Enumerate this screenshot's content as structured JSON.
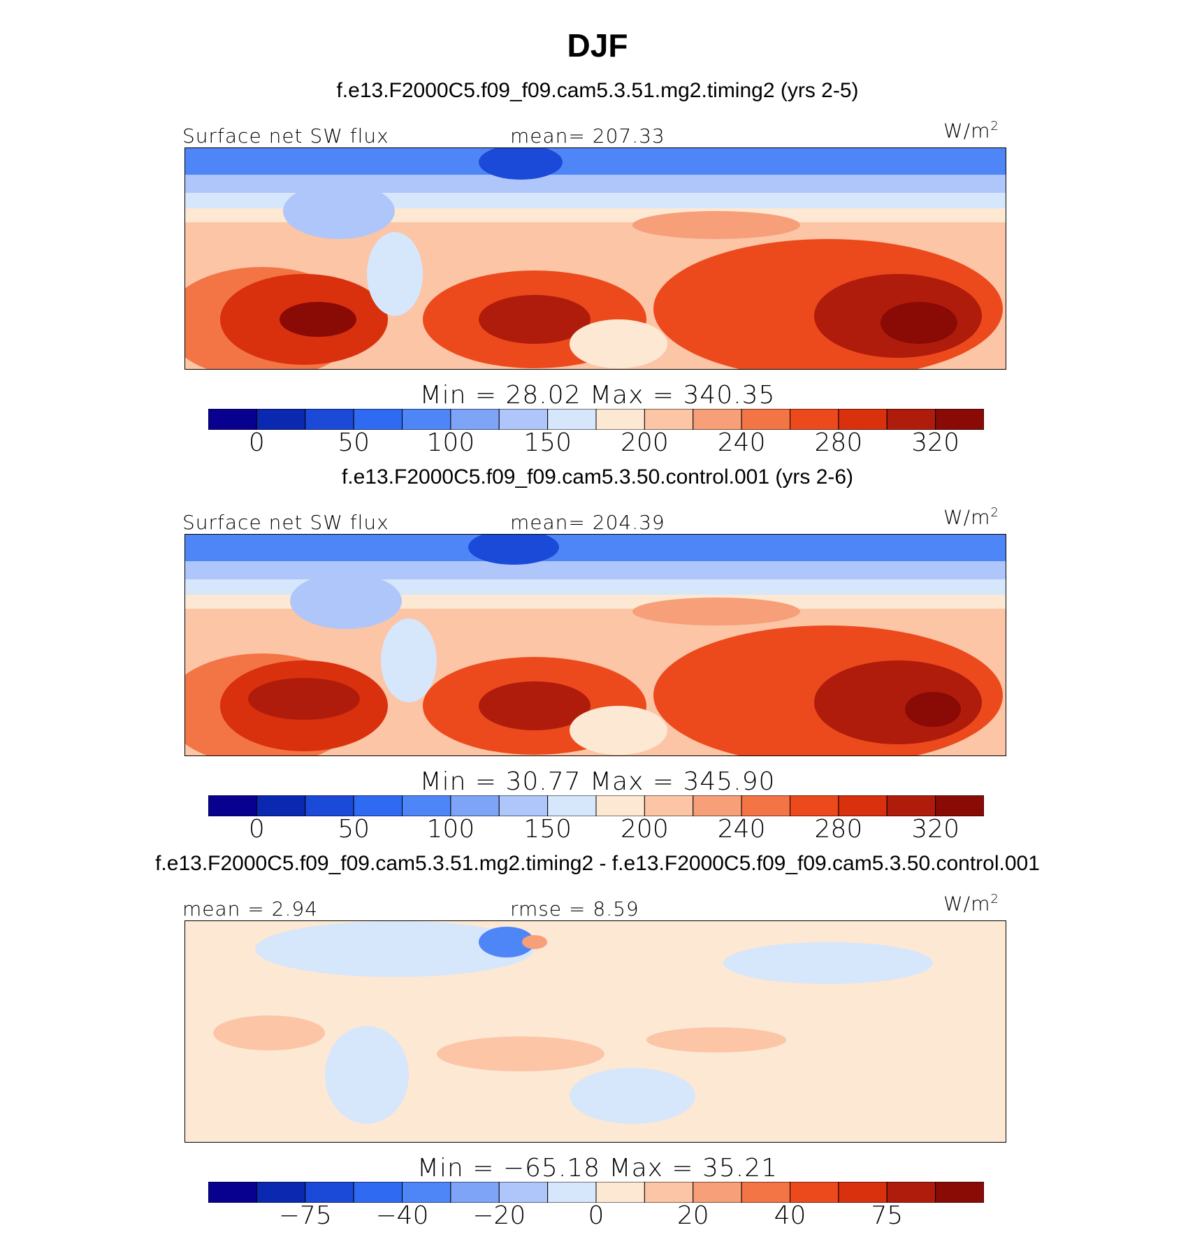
{
  "title": "DJF",
  "palette": [
    "#08008f",
    "#0a28b0",
    "#1b49d8",
    "#2f6af2",
    "#4f86f7",
    "#7ea4f8",
    "#aec6fa",
    "#d6e6fb",
    "#fde8d4",
    "#fbc5a6",
    "#f69f79",
    "#f37445",
    "#ec4a1d",
    "#d9300e",
    "#b01c0c",
    "#8a0a06"
  ],
  "panels": [
    {
      "subtitle": "f.e13.F2000C5.f09_f09.cam5.3.51.mg2.timing2 (yrs 2-5)",
      "left_label": "Surface net SW flux",
      "center_label": "mean= 207.33",
      "unit": "W/m",
      "unit_sup": "2",
      "minmax": "Min =   28.02  Max =  340.35",
      "ticks": [
        "0",
        "50",
        "100",
        "150",
        "200",
        "240",
        "280",
        "320"
      ],
      "kind": "absolute"
    },
    {
      "subtitle": "f.e13.F2000C5.f09_f09.cam5.3.50.control.001 (yrs 2-6)",
      "left_label": "Surface net SW flux",
      "center_label": "mean= 204.39",
      "unit": "W/m",
      "unit_sup": "2",
      "minmax": "Min =   30.77  Max =  345.90",
      "ticks": [
        "0",
        "50",
        "100",
        "150",
        "200",
        "240",
        "280",
        "320"
      ],
      "kind": "absolute"
    },
    {
      "subtitle": "f.e13.F2000C5.f09_f09.cam5.3.51.mg2.timing2 - f.e13.F2000C5.f09_f09.cam5.3.50.control.001",
      "left_label": "mean =    2.94",
      "center_label": "rmse =    8.59",
      "unit": "W/m",
      "unit_sup": "2",
      "minmax": "Min = −65.18  Max =   35.21",
      "ticks": [
        "−75",
        "−40",
        "−20",
        "0",
        "20",
        "40",
        "75"
      ],
      "kind": "difference"
    }
  ]
}
